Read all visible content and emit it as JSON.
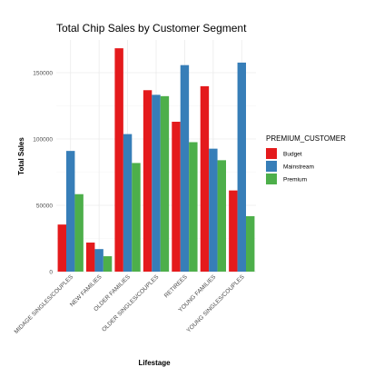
{
  "chart_data": {
    "type": "bar",
    "title": "Total Chip Sales by Customer Segment",
    "xlabel": "Lifestage",
    "ylabel": "Total Sales",
    "categories": [
      "MIDAGE SINGLES/COUPLES",
      "NEW FAMILIES",
      "OLDER FAMILIES",
      "OLDER SINGLES/COUPLES",
      "RETIREES",
      "YOUNG FAMILIES",
      "YOUNG SINGLES/COUPLES"
    ],
    "series": [
      {
        "name": "Budget",
        "color": "#e41a1c",
        "values": [
          35500,
          21900,
          168400,
          136800,
          113000,
          139800,
          61200
        ]
      },
      {
        "name": "Mainstream",
        "color": "#377eb8",
        "values": [
          91000,
          17000,
          103700,
          133300,
          155700,
          92700,
          157600
        ]
      },
      {
        "name": "Premium",
        "color": "#4daf4a",
        "values": [
          58400,
          11600,
          81900,
          132300,
          97600,
          84000,
          41800
        ]
      }
    ],
    "ylim": [
      0,
      180000
    ],
    "yticks": [
      0,
      50000,
      100000,
      150000
    ],
    "ytick_labels": [
      "0",
      "50000",
      "100000",
      "150000"
    ],
    "grid": true,
    "legend": {
      "title": "PREMIUM_CUSTOMER",
      "position": "right"
    }
  }
}
